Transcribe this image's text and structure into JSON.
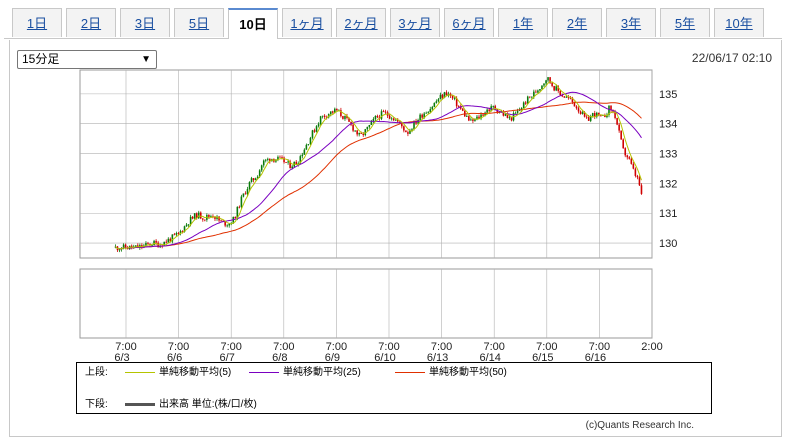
{
  "tabs": [
    {
      "label": "1日"
    },
    {
      "label": "2日"
    },
    {
      "label": "3日"
    },
    {
      "label": "5日"
    },
    {
      "label": "10日"
    },
    {
      "label": "1ヶ月"
    },
    {
      "label": "2ヶ月"
    },
    {
      "label": "3ヶ月"
    },
    {
      "label": "6ヶ月"
    },
    {
      "label": "1年"
    },
    {
      "label": "2年"
    },
    {
      "label": "3年"
    },
    {
      "label": "5年"
    },
    {
      "label": "10年"
    }
  ],
  "active_tab": "10日",
  "interval_select": {
    "value": "15分足"
  },
  "timestamp": "22/06/17 02:10",
  "legend": {
    "upper_label": "上段:",
    "ma5": "単純移動平均(5)",
    "ma25": "単純移動平均(25)",
    "ma50": "単純移動平均(50)",
    "lower_label": "下段:",
    "volume": "出来高 単位:(株/口/枚)"
  },
  "copyright": "(c)Quants Research Inc.",
  "colors": {
    "ma5": "#b5c400",
    "ma25": "#7a00c0",
    "ma50": "#e03000",
    "candle_up": "#0a7a0a",
    "candle_down": "#d00000",
    "grid": "#b0b0b0"
  },
  "chart_data": {
    "type": "candlestick",
    "ylim": [
      129.5,
      135.8
    ],
    "y_ticks": [
      130,
      131,
      132,
      133,
      134,
      135
    ],
    "x_ticks": [
      {
        "time": "7:00",
        "date": "6/3"
      },
      {
        "time": "7:00",
        "date": "6/6"
      },
      {
        "time": "7:00",
        "date": "6/7"
      },
      {
        "time": "7:00",
        "date": "6/8"
      },
      {
        "time": "7:00",
        "date": "6/9"
      },
      {
        "time": "7:00",
        "date": "6/10"
      },
      {
        "time": "7:00",
        "date": "6/13"
      },
      {
        "time": "7:00",
        "date": "6/14"
      },
      {
        "time": "7:00",
        "date": "6/15"
      },
      {
        "time": "7:00",
        "date": "6/16"
      },
      {
        "time": "2:00",
        "date": ""
      }
    ],
    "close_path": [
      [
        0,
        129.85
      ],
      [
        0.2,
        129.85
      ],
      [
        0.35,
        129.9
      ],
      [
        0.5,
        130.0
      ],
      [
        0.65,
        129.95
      ],
      [
        0.8,
        130.1
      ],
      [
        1.0,
        130.3
      ],
      [
        1.2,
        130.75
      ],
      [
        1.35,
        130.95
      ],
      [
        1.5,
        130.85
      ],
      [
        1.65,
        130.95
      ],
      [
        1.8,
        130.7
      ],
      [
        1.95,
        130.65
      ],
      [
        2.05,
        130.8
      ],
      [
        2.2,
        131.5
      ],
      [
        2.35,
        132.0
      ],
      [
        2.5,
        132.3
      ],
      [
        2.6,
        132.7
      ],
      [
        2.75,
        132.85
      ],
      [
        2.9,
        132.8
      ],
      [
        3.0,
        132.75
      ],
      [
        3.1,
        132.6
      ],
      [
        3.25,
        132.7
      ],
      [
        3.4,
        133.2
      ],
      [
        3.55,
        133.7
      ],
      [
        3.7,
        134.2
      ],
      [
        3.85,
        134.35
      ],
      [
        4.0,
        134.45
      ],
      [
        4.15,
        134.2
      ],
      [
        4.3,
        133.9
      ],
      [
        4.45,
        133.55
      ],
      [
        4.6,
        133.85
      ],
      [
        4.75,
        134.2
      ],
      [
        4.9,
        134.35
      ],
      [
        5.05,
        134.25
      ],
      [
        5.2,
        134.0
      ],
      [
        5.35,
        133.7
      ],
      [
        5.5,
        134.05
      ],
      [
        5.65,
        134.35
      ],
      [
        5.8,
        134.55
      ],
      [
        5.95,
        134.85
      ],
      [
        6.1,
        135.05
      ],
      [
        6.25,
        134.75
      ],
      [
        6.4,
        134.4
      ],
      [
        6.55,
        134.05
      ],
      [
        6.7,
        134.2
      ],
      [
        6.85,
        134.45
      ],
      [
        7.0,
        134.55
      ],
      [
        7.15,
        134.35
      ],
      [
        7.3,
        134.15
      ],
      [
        7.45,
        134.4
      ],
      [
        7.6,
        134.75
      ],
      [
        7.75,
        135.0
      ],
      [
        7.9,
        135.3
      ],
      [
        8.0,
        135.55
      ],
      [
        8.15,
        135.2
      ],
      [
        8.3,
        134.95
      ],
      [
        8.45,
        134.8
      ],
      [
        8.6,
        134.5
      ],
      [
        8.75,
        134.1
      ],
      [
        8.9,
        134.35
      ],
      [
        9.05,
        134.15
      ],
      [
        9.2,
        134.55
      ],
      [
        9.3,
        134.25
      ],
      [
        9.45,
        133.1
      ],
      [
        9.55,
        132.85
      ],
      [
        9.65,
        132.4
      ],
      [
        9.75,
        132.05
      ],
      [
        9.8,
        131.55
      ]
    ]
  }
}
